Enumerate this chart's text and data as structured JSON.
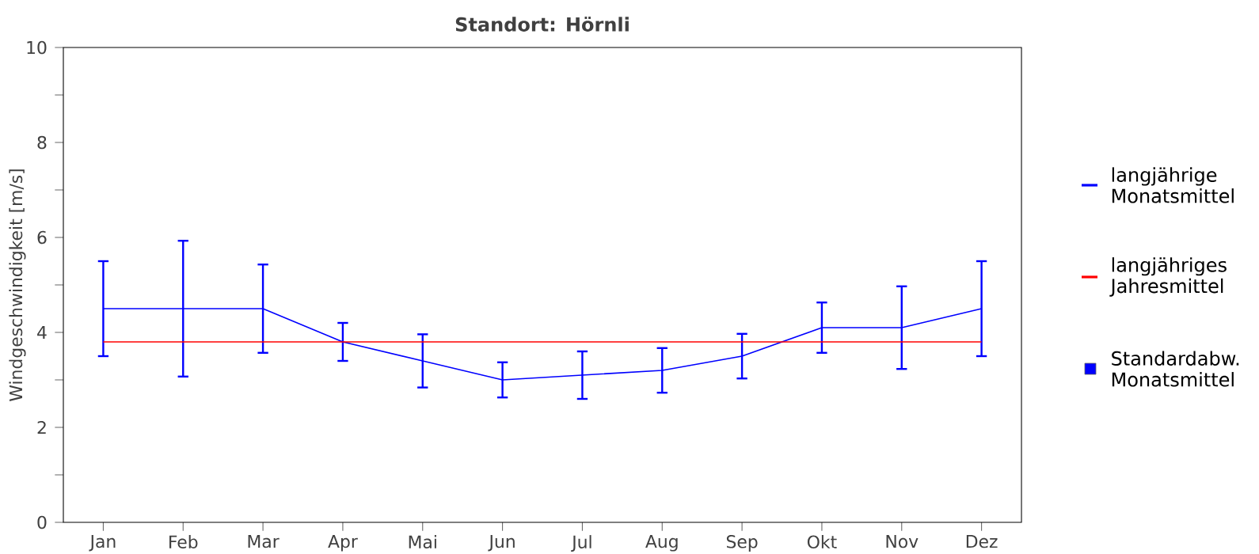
{
  "chart_data": {
    "type": "line",
    "title": "Standort: Hörnli",
    "ylabel": "Windgeschwindigkeit [m/s]",
    "categories": [
      "Jan",
      "Feb",
      "Mar",
      "Apr",
      "Mai",
      "Jun",
      "Jul",
      "Aug",
      "Sep",
      "Okt",
      "Nov",
      "Dez"
    ],
    "series": [
      {
        "name": "langjährige Monatsmittel",
        "color": "#0000ff",
        "values": [
          4.5,
          4.5,
          4.5,
          3.8,
          3.4,
          3.0,
          3.1,
          3.2,
          3.5,
          4.1,
          4.1,
          4.5
        ],
        "errors": [
          1.0,
          1.43,
          0.93,
          0.4,
          0.56,
          0.37,
          0.5,
          0.47,
          0.47,
          0.53,
          0.87,
          1.0
        ]
      },
      {
        "name": "langjähriges Jahresmittel",
        "color": "#ff0000",
        "values": [
          3.8,
          3.8,
          3.8,
          3.8,
          3.8,
          3.8,
          3.8,
          3.8,
          3.8,
          3.8,
          3.8,
          3.8
        ]
      }
    ],
    "annotations": [
      "Standardabw. Monatsmittel"
    ],
    "ylim": [
      0,
      10
    ],
    "yticks": [
      0,
      {
        "value": 1,
        "label": null
      },
      2,
      {
        "value": 3,
        "label": null
      },
      4,
      {
        "value": 5,
        "label": null
      },
      6,
      {
        "value": 7,
        "label": null
      },
      8,
      {
        "value": 9,
        "label": null
      },
      10
    ],
    "legend": "right",
    "line_style": "solid",
    "grid": false
  }
}
